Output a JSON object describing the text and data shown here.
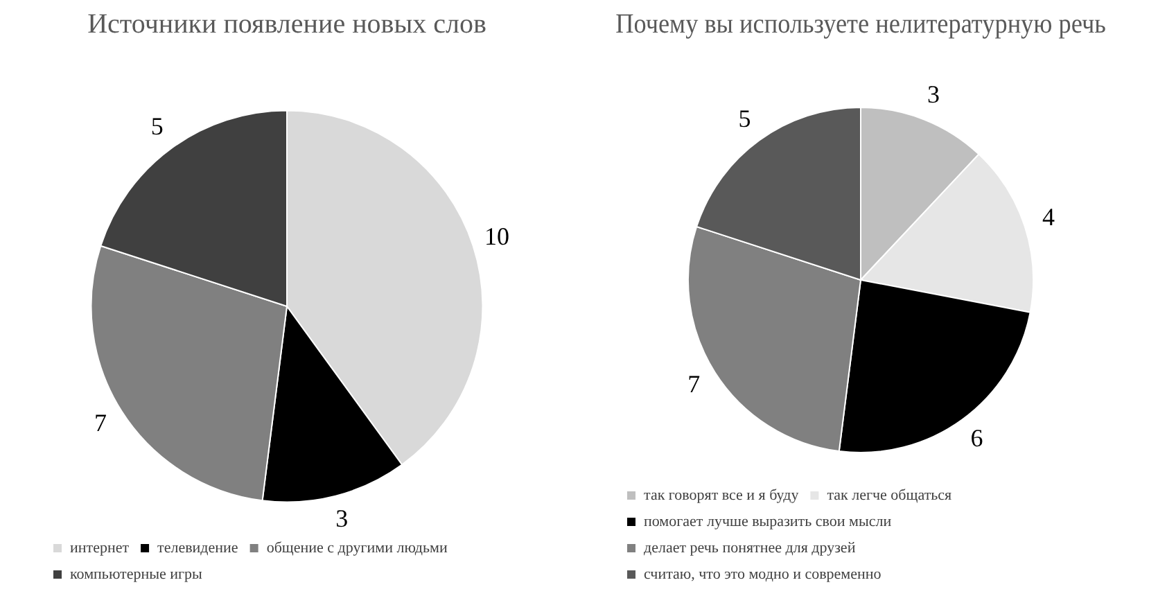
{
  "chart_data": [
    {
      "type": "pie",
      "title": "Источники появление новых слов",
      "categories": [
        "интернет",
        "телевидение",
        "общение с другими людьми",
        "компьютерные игры"
      ],
      "values": [
        10,
        3,
        7,
        5
      ],
      "colors": [
        "#d9d9d9",
        "#000000",
        "#808080",
        "#404040"
      ],
      "data_labels": true,
      "legend": "bottom"
    },
    {
      "type": "pie",
      "title": "Почему вы используете нелитературную речь",
      "categories": [
        "так говорят все и я буду",
        "так легче общаться",
        "помогает лучше выразить свои мысли",
        "делает речь понятнее для друзей",
        "считаю, что это модно и современно"
      ],
      "values": [
        3,
        4,
        6,
        7,
        5
      ],
      "colors": [
        "#bfbfbf",
        "#e6e6e6",
        "#000000",
        "#808080",
        "#595959"
      ],
      "data_labels": true,
      "legend": "bottom"
    }
  ]
}
